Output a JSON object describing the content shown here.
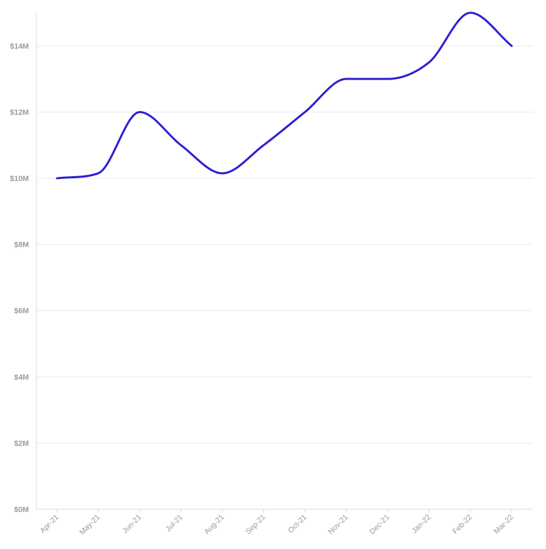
{
  "chart_data": {
    "type": "line",
    "title": "",
    "xlabel": "",
    "ylabel": "",
    "categories": [
      "Apr-21",
      "May-21",
      "Jun-21",
      "Jul-21",
      "Aug-21",
      "Sep-21",
      "Oct-21",
      "Nov-21",
      "Dec-21",
      "Jan-22",
      "Feb-22",
      "Mar-22"
    ],
    "series": [
      {
        "values": [
          10000000,
          10150000,
          12000000,
          11000000,
          10150000,
          11000000,
          12000000,
          13000000,
          13000000,
          13500000,
          15000000,
          14000000
        ],
        "color": "#2c1fd1"
      }
    ],
    "ylim": [
      0,
      15000000
    ],
    "yticks": [
      0,
      2000000,
      4000000,
      6000000,
      8000000,
      10000000,
      12000000,
      14000000
    ],
    "ytick_labels": [
      "$0M",
      "$2M",
      "$4M",
      "$6M",
      "$8M",
      "$10M",
      "$12M",
      "$14M"
    ],
    "grid": true,
    "legend": "none"
  }
}
